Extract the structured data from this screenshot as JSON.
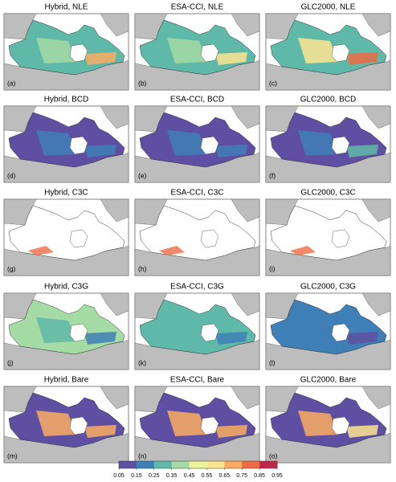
{
  "panels": [
    {
      "title": "Hybrid, NLE",
      "label": "(a)"
    },
    {
      "title": "ESA-CCI, NLE",
      "label": "(b)"
    },
    {
      "title": "GLC2000, NLE",
      "label": "(c)"
    },
    {
      "title": "Hybrid, BCD",
      "label": "(d)"
    },
    {
      "title": "ESA-CCI, BCD",
      "label": "(e)"
    },
    {
      "title": "GLC2000, BCD",
      "label": "(f)"
    },
    {
      "title": "Hybrid, C3C",
      "label": "(g)"
    },
    {
      "title": "ESA-CCI, C3C",
      "label": "(h)"
    },
    {
      "title": "GLC2000, C3C",
      "label": "(i)"
    },
    {
      "title": "Hybrid, C3G",
      "label": "(j)"
    },
    {
      "title": "ESA-CCI, C3G",
      "label": "(k)"
    },
    {
      "title": "GLC2000, C3G",
      "label": "(l)"
    },
    {
      "title": "Hybrid, Bare",
      "label": "(m)"
    },
    {
      "title": "ESA-CCI, Bare",
      "label": "(n)"
    },
    {
      "title": "GLC2000, Bare",
      "label": "(o)"
    }
  ],
  "colorbar": {
    "lim": [
      0.05,
      0.95
    ],
    "ticks": [
      0.05,
      0.15,
      0.25,
      0.35,
      0.45,
      0.55,
      0.65,
      0.75,
      0.85,
      0.95
    ],
    "colors": [
      "#5e4fa2",
      "#3f7fb7",
      "#5fb9a8",
      "#a5dba4",
      "#e9f59d",
      "#fee491",
      "#fbac60",
      "#ef6b45",
      "#c1274a"
    ]
  }
}
